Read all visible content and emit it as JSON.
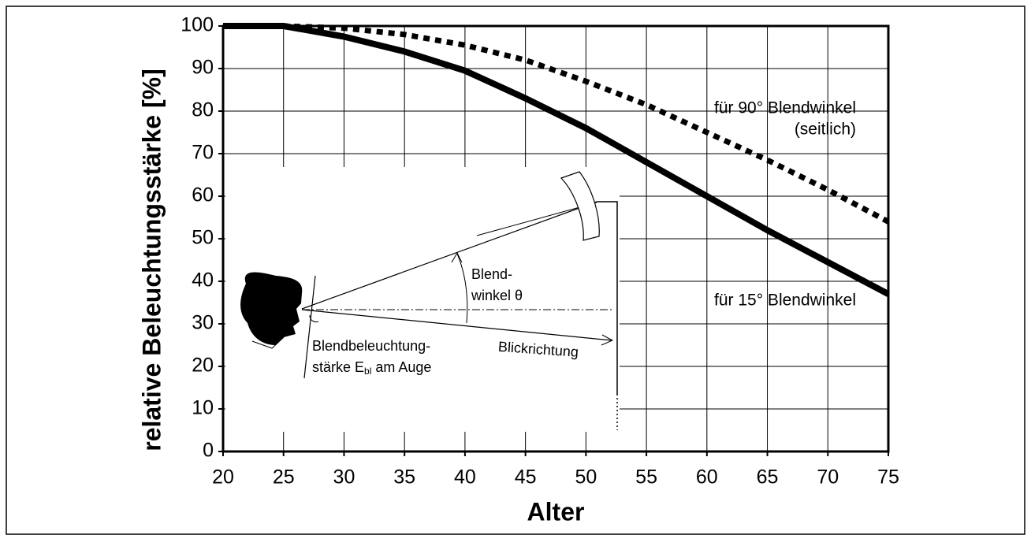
{
  "chart_data": {
    "type": "line",
    "x": [
      20,
      25,
      30,
      35,
      40,
      45,
      50,
      55,
      60,
      65,
      70,
      75
    ],
    "series": [
      {
        "name": "für 15° Blendwinkel",
        "color": "#000000",
        "style": "solid",
        "values": [
          100,
          100,
          97.5,
          94,
          89.5,
          83,
          76,
          68,
          60,
          52,
          44.5,
          37
        ]
      },
      {
        "name": "für 90° Blendwinkel",
        "color": "#000000",
        "style": "dotted",
        "values": [
          100,
          100,
          99.5,
          98,
          95.5,
          92,
          87,
          81.5,
          75,
          68.5,
          61.5,
          54
        ]
      }
    ],
    "series_note": "(seitlich)",
    "xlabel": "Alter",
    "ylabel": "relative Beleuchtungsstärke [%]",
    "xlim": [
      20,
      75
    ],
    "xticks": [
      20,
      25,
      30,
      35,
      40,
      45,
      50,
      55,
      60,
      65,
      70,
      75
    ],
    "ylim": [
      0,
      100
    ],
    "yticks": [
      0,
      10,
      20,
      30,
      40,
      50,
      60,
      70,
      80,
      90,
      100
    ],
    "grid": true
  },
  "diagram": {
    "angle_label": [
      "Blend-",
      "winkel θ"
    ],
    "direction_label": "Blickrichtung",
    "illuminance_label": [
      "Blendbeleuchtung-",
      "stärke E",
      "bl",
      " am Auge"
    ]
  }
}
